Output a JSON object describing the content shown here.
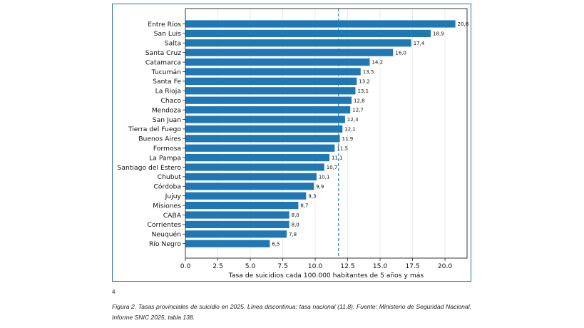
{
  "chart_data": {
    "type": "bar",
    "orientation": "horizontal",
    "categories": [
      "Entre Ríos",
      "San Luis",
      "Salta",
      "Santa Cruz",
      "Catamarca",
      "Tucumán",
      "Santa Fe",
      "La Rioja",
      "Chaco",
      "Mendoza",
      "San Juan",
      "Tierra del Fuego",
      "Buenos Aires",
      "Formosa",
      "La Pampa",
      "Santiago del Estero",
      "Chubut",
      "Córdoba",
      "Jujuy",
      "Misiones",
      "CABA",
      "Corrientes",
      "Neuquén",
      "Río Negro"
    ],
    "values": [
      20.8,
      18.9,
      17.4,
      16.0,
      14.2,
      13.5,
      13.2,
      13.1,
      12.8,
      12.7,
      12.3,
      12.1,
      11.9,
      11.5,
      11.1,
      10.7,
      10.1,
      9.9,
      9.3,
      8.7,
      8.0,
      8.0,
      7.8,
      6.5
    ],
    "value_labels": [
      "20,8",
      "18,9",
      "17,4",
      "16,0",
      "14,2",
      "13,5",
      "13,2",
      "13,1",
      "12,8",
      "12,7",
      "12,3",
      "12,1",
      "11,9",
      "11,5",
      "11,1",
      "10,7",
      "10,1",
      "9,9",
      "9,3",
      "8,7",
      "8,0",
      "8,0",
      "7,8",
      "6,5"
    ],
    "xlabel": "Tasa de suicidios cada 100.000 habitantes de 5 años y más",
    "ylabel": "",
    "xlim": [
      0,
      21.7
    ],
    "xticks": [
      0,
      2.5,
      5,
      7.5,
      10,
      12.5,
      15,
      17.5,
      20
    ],
    "xtick_labels": [
      "0.0",
      "2.5",
      "5.0",
      "7.5",
      "10.0",
      "12.5",
      "15.0",
      "17.5",
      "20.0"
    ],
    "reference_line": {
      "value": 11.8,
      "style": "dashed"
    },
    "grid": "vertical",
    "colors": {
      "bar": "#1f77b4",
      "reference_line": "#1f77b4",
      "grid": "#e6e6e6"
    }
  },
  "page_number": "4",
  "caption": "Figura 2. Tasas provinciales de suicidio en 2025. Línea discontinua: tasa nacional (11,8). Fuente: Ministerio de Seguridad Nacional, Informe SNIC 2025, tabla 138."
}
